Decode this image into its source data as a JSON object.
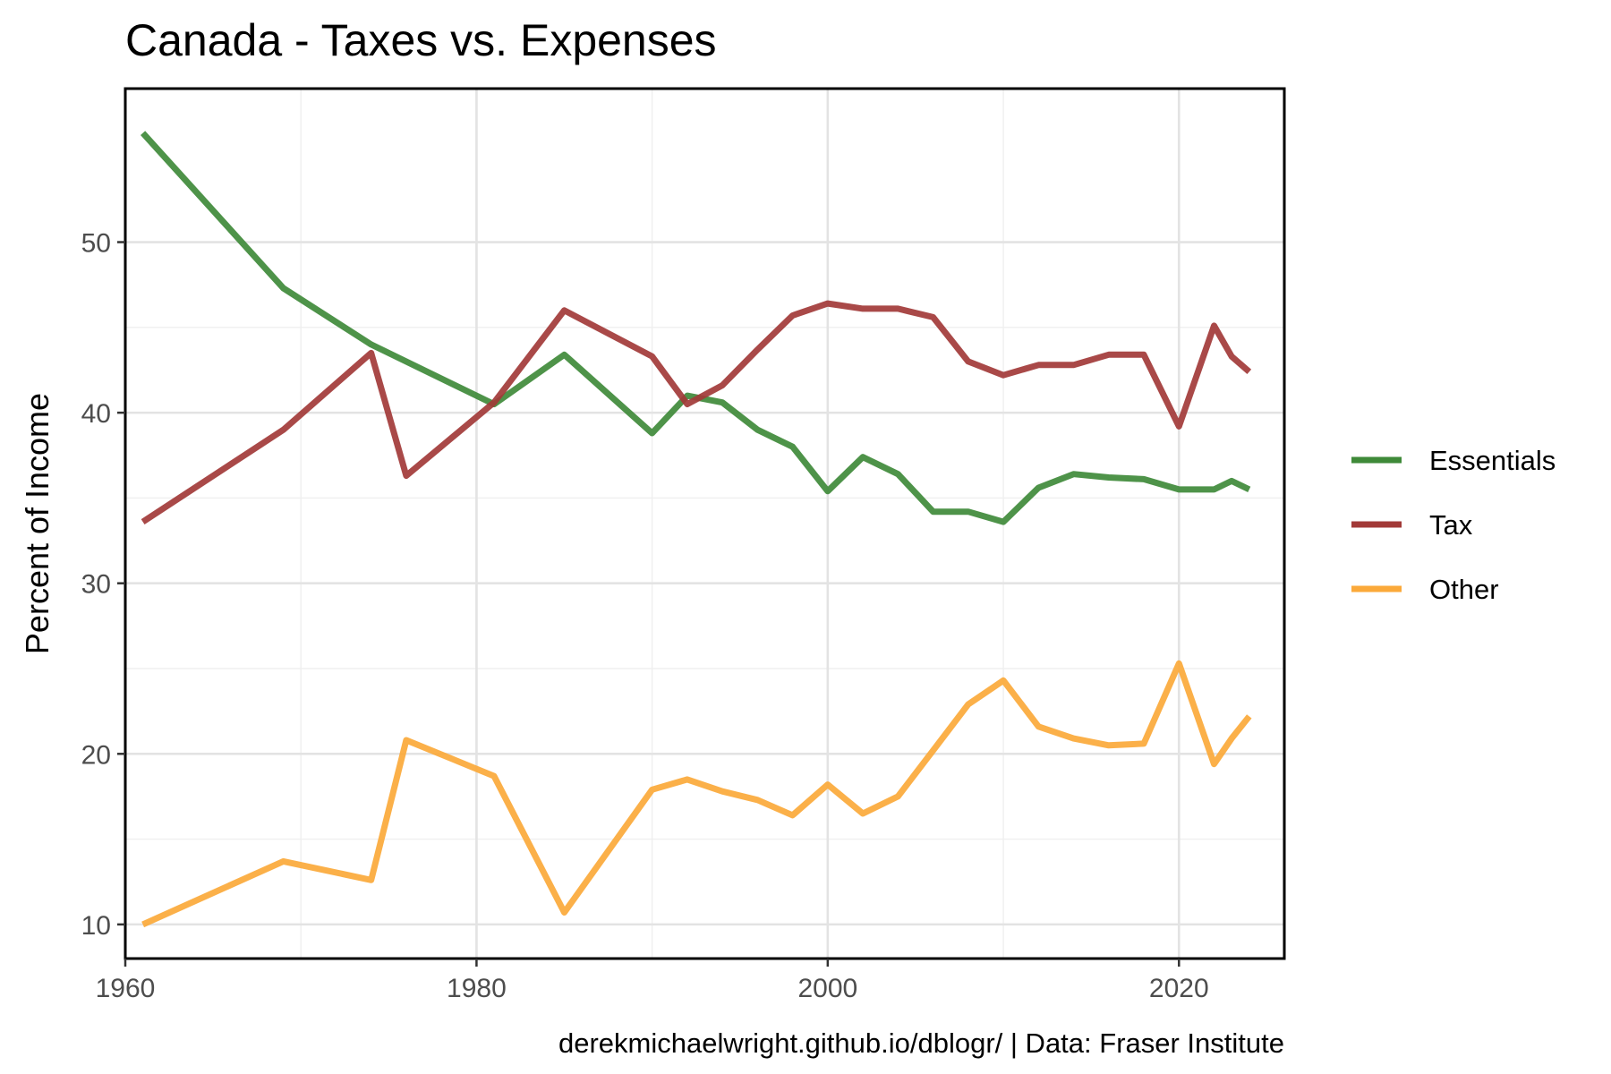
{
  "chart_data": {
    "type": "line",
    "title": "Canada - Taxes vs. Expenses",
    "xlabel": "",
    "ylabel": "Percent of Income",
    "caption": "derekmichaelwright.github.io/dblogr/ | Data: Fraser Institute",
    "xlim": [
      1960,
      2026
    ],
    "ylim": [
      8,
      59
    ],
    "x_ticks": [
      1960,
      1980,
      2000,
      2020
    ],
    "y_ticks": [
      10,
      20,
      30,
      40,
      50
    ],
    "grid": true,
    "legend_position": "right",
    "series": [
      {
        "name": "Essentials",
        "color": "#3f8a39",
        "points": [
          [
            1961,
            56.4
          ],
          [
            1969,
            47.3
          ],
          [
            1974,
            44.0
          ],
          [
            1981,
            40.5
          ],
          [
            1985,
            43.4
          ],
          [
            1990,
            38.8
          ],
          [
            1992,
            41.0
          ],
          [
            1994,
            40.6
          ],
          [
            1996,
            39.0
          ],
          [
            1998,
            38.0
          ],
          [
            2000,
            35.4
          ],
          [
            2002,
            37.4
          ],
          [
            2004,
            36.4
          ],
          [
            2006,
            34.2
          ],
          [
            2008,
            34.2
          ],
          [
            2010,
            33.6
          ],
          [
            2012,
            35.6
          ],
          [
            2014,
            36.4
          ],
          [
            2016,
            36.2
          ],
          [
            2018,
            36.1
          ],
          [
            2020,
            35.5
          ],
          [
            2022,
            35.5
          ],
          [
            2023,
            36.0
          ],
          [
            2024,
            35.5
          ]
        ]
      },
      {
        "name": "Tax",
        "color": "#a23a38",
        "points": [
          [
            1961,
            33.6
          ],
          [
            1969,
            39.0
          ],
          [
            1974,
            43.5
          ],
          [
            1976,
            36.3
          ],
          [
            1981,
            40.6
          ],
          [
            1985,
            46.0
          ],
          [
            1990,
            43.3
          ],
          [
            1992,
            40.5
          ],
          [
            1994,
            41.6
          ],
          [
            1996,
            43.7
          ],
          [
            1998,
            45.7
          ],
          [
            2000,
            46.4
          ],
          [
            2002,
            46.1
          ],
          [
            2004,
            46.1
          ],
          [
            2006,
            45.6
          ],
          [
            2008,
            43.0
          ],
          [
            2010,
            42.2
          ],
          [
            2012,
            42.8
          ],
          [
            2014,
            42.8
          ],
          [
            2016,
            43.4
          ],
          [
            2018,
            43.4
          ],
          [
            2020,
            39.2
          ],
          [
            2022,
            45.1
          ],
          [
            2023,
            43.3
          ],
          [
            2024,
            42.4
          ]
        ]
      },
      {
        "name": "Other",
        "color": "#fba93a",
        "points": [
          [
            1961,
            10.0
          ],
          [
            1969,
            13.7
          ],
          [
            1974,
            12.6
          ],
          [
            1976,
            20.8
          ],
          [
            1981,
            18.7
          ],
          [
            1985,
            10.7
          ],
          [
            1990,
            17.9
          ],
          [
            1992,
            18.5
          ],
          [
            1994,
            17.8
          ],
          [
            1996,
            17.3
          ],
          [
            1998,
            16.4
          ],
          [
            2000,
            18.2
          ],
          [
            2002,
            16.5
          ],
          [
            2004,
            17.5
          ],
          [
            2006,
            20.2
          ],
          [
            2008,
            22.9
          ],
          [
            2010,
            24.3
          ],
          [
            2012,
            21.6
          ],
          [
            2014,
            20.9
          ],
          [
            2016,
            20.5
          ],
          [
            2018,
            20.6
          ],
          [
            2020,
            25.3
          ],
          [
            2022,
            19.4
          ],
          [
            2023,
            20.9
          ],
          [
            2024,
            22.2
          ]
        ]
      }
    ]
  }
}
